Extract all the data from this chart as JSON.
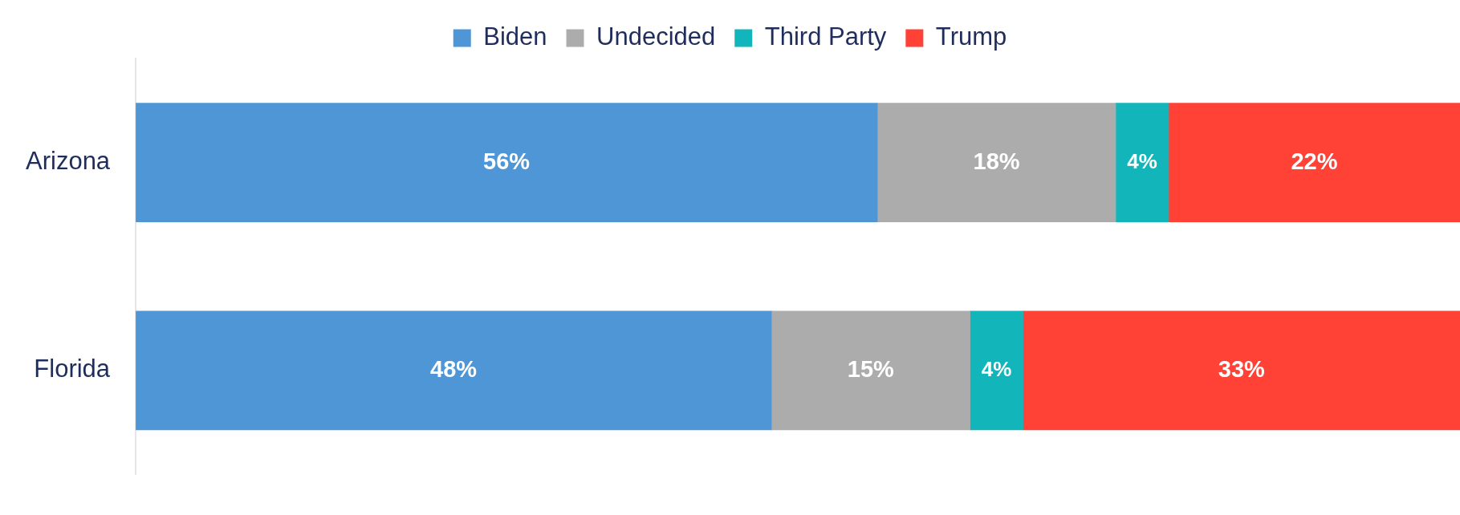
{
  "chart_data": {
    "type": "bar",
    "orientation": "horizontal",
    "stacked": true,
    "categories": [
      "Arizona",
      "Florida"
    ],
    "xlim": [
      0,
      100
    ],
    "tick_labels": "y",
    "grid": false,
    "legend": "top",
    "series": [
      {
        "name": "Biden",
        "color": "#4e96d6",
        "values": [
          56,
          48
        ],
        "value_labels": [
          "56%",
          "48%"
        ]
      },
      {
        "name": "Undecided",
        "color": "#acacac",
        "values": [
          18,
          15
        ],
        "value_labels": [
          "18%",
          "15%"
        ]
      },
      {
        "name": "Third Party",
        "color": "#12b5b9",
        "values": [
          4,
          4
        ],
        "value_labels": [
          "4%",
          "4%"
        ]
      },
      {
        "name": "Trump",
        "color": "#ff4136",
        "values": [
          22,
          33
        ],
        "value_labels": [
          "22%",
          "33%"
        ]
      }
    ]
  }
}
